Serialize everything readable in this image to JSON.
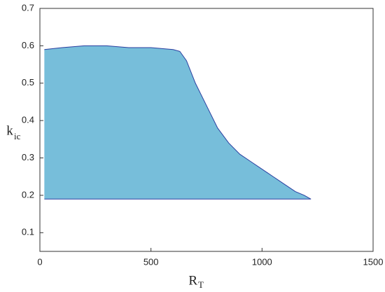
{
  "chart_data": {
    "type": "area",
    "x": [
      20,
      100,
      200,
      300,
      400,
      500,
      600,
      630,
      660,
      700,
      750,
      800,
      850,
      900,
      950,
      1000,
      1050,
      1100,
      1150,
      1190,
      1220
    ],
    "values": [
      0.59,
      0.595,
      0.6,
      0.6,
      0.595,
      0.595,
      0.59,
      0.585,
      0.56,
      0.5,
      0.44,
      0.38,
      0.34,
      0.31,
      0.29,
      0.27,
      0.25,
      0.23,
      0.21,
      0.2,
      0.19
    ],
    "base": 0.19,
    "color": "#5fb3d4",
    "edge": "#2a3fa0",
    "xlim": [
      0,
      1500
    ],
    "xticks": [
      0,
      500,
      1000,
      1500
    ],
    "ylim": [
      0.05,
      0.7
    ],
    "yticks": [
      0.1,
      0.2,
      0.3,
      0.4,
      0.5,
      0.6,
      0.7
    ],
    "xlabel": {
      "main": "R",
      "sub": "T"
    },
    "ylabel": {
      "main": "k",
      "sub": "ic"
    }
  }
}
